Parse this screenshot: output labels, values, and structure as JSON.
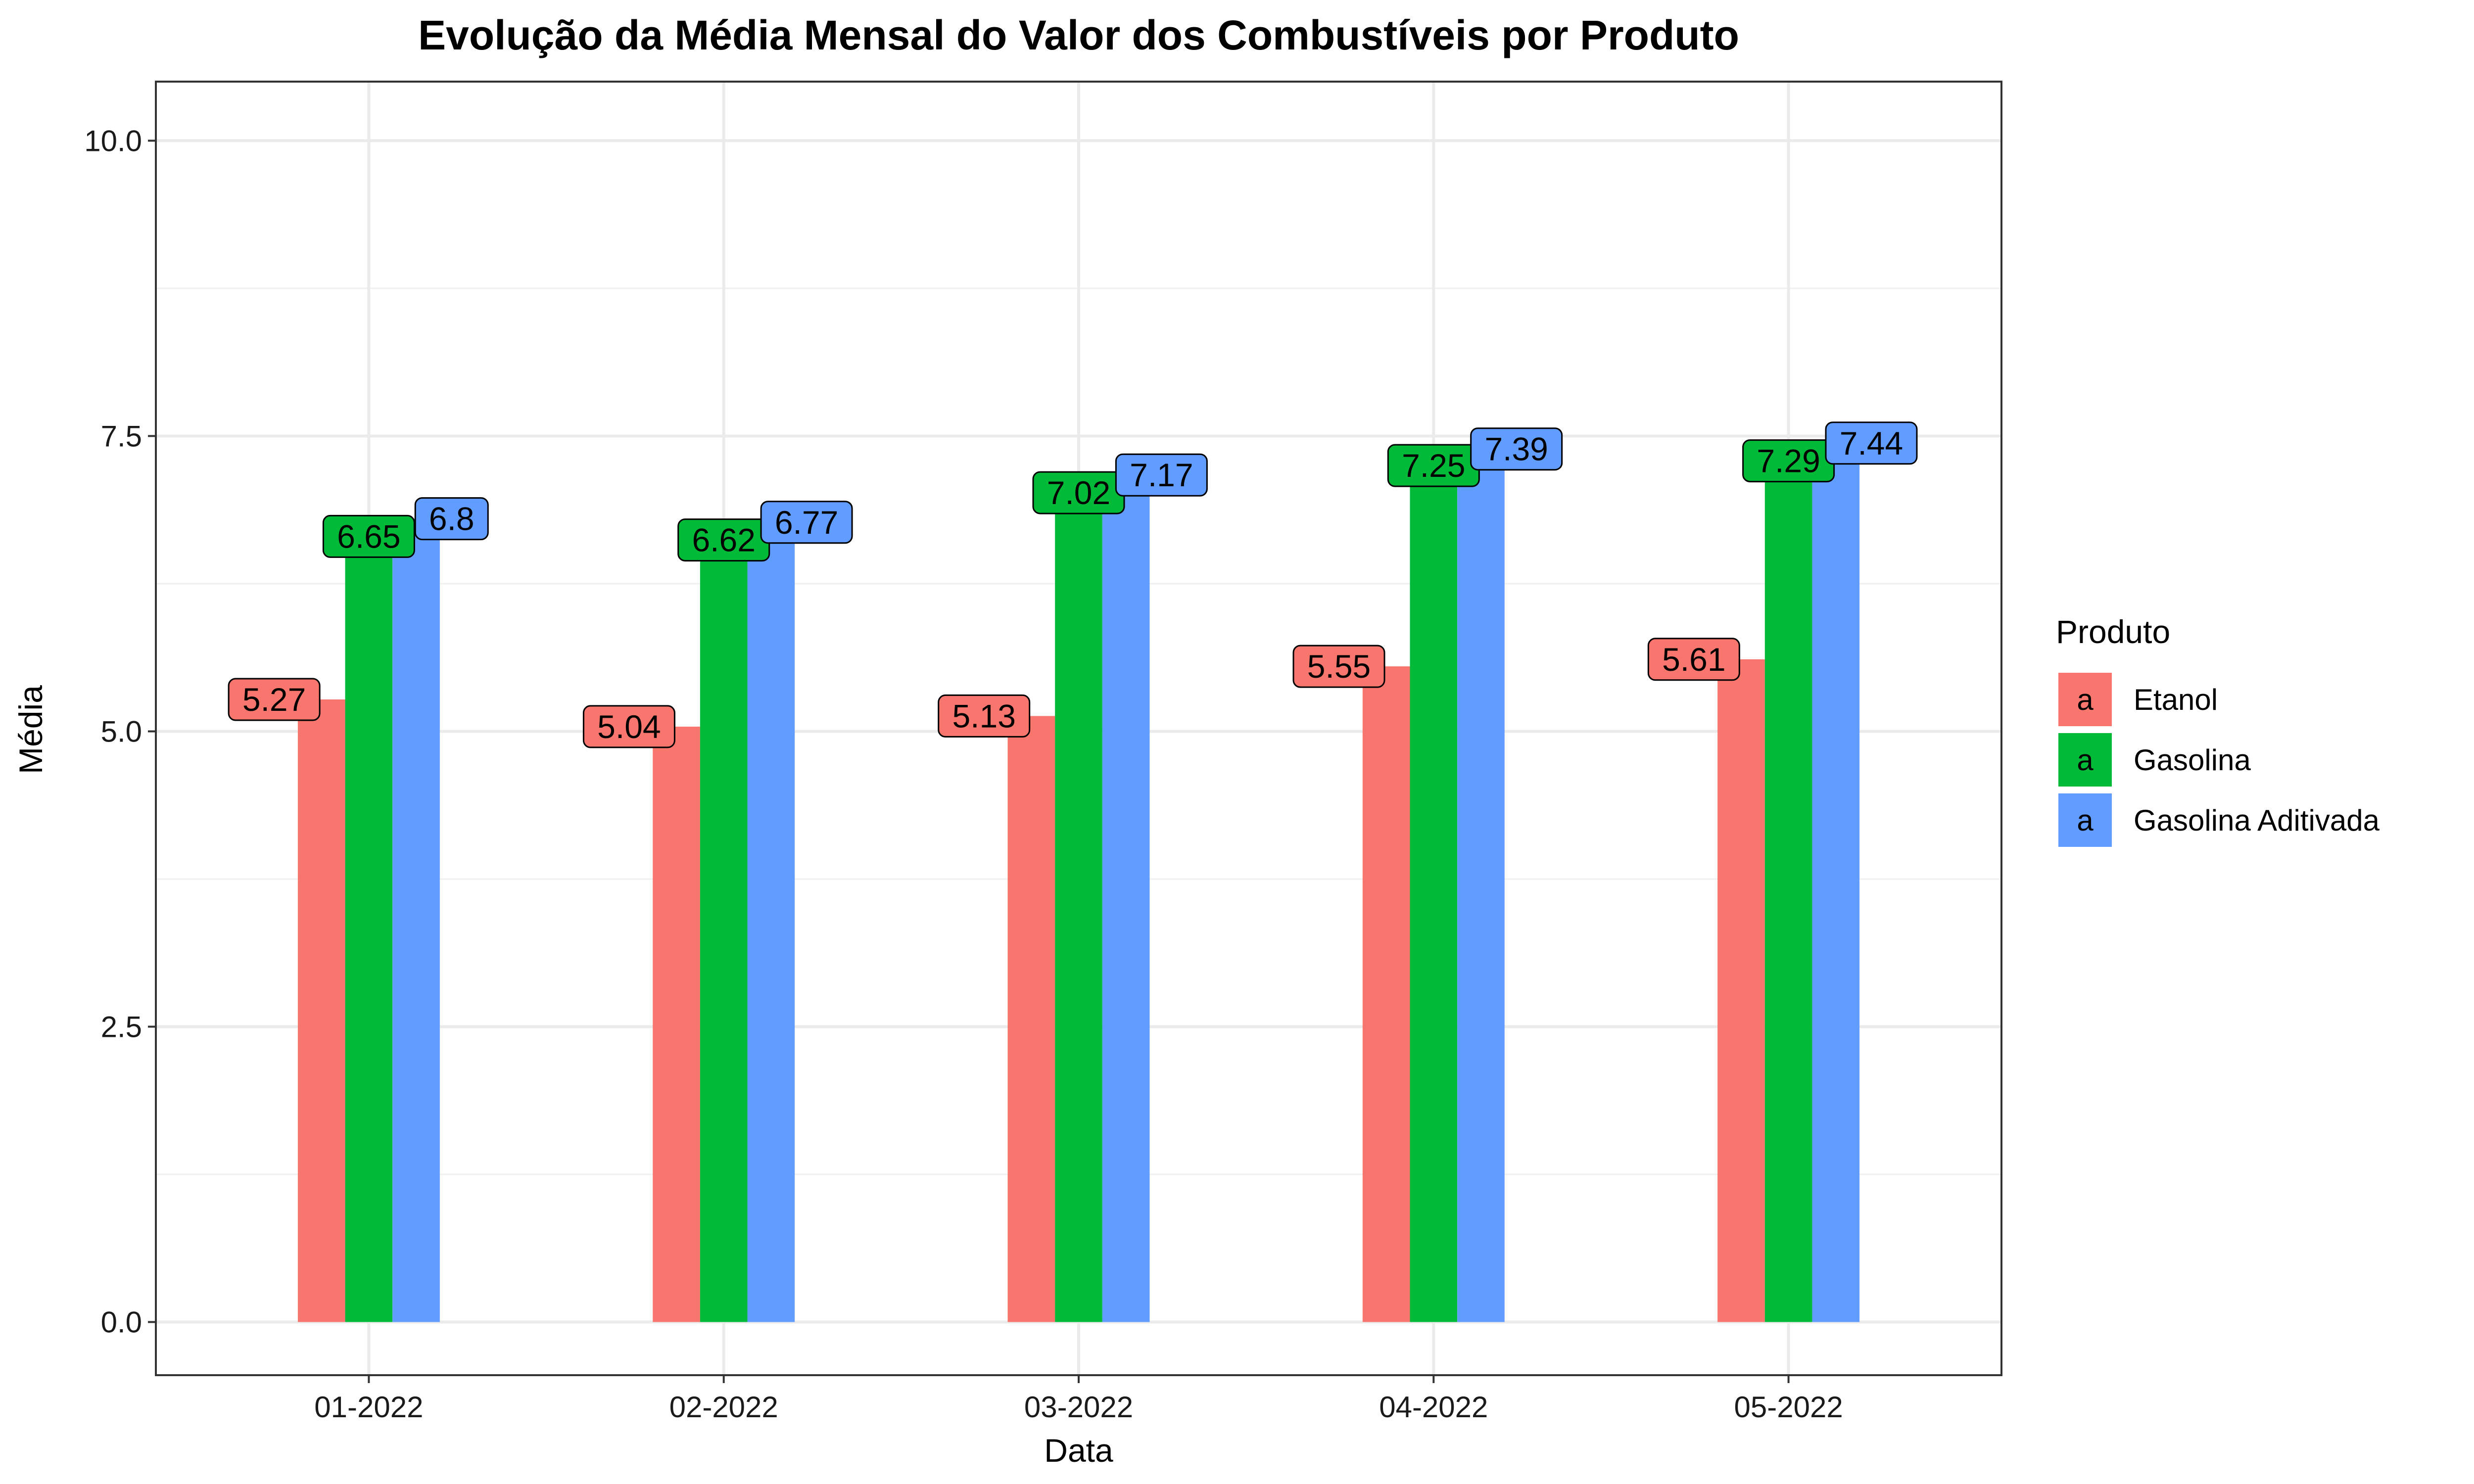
{
  "chart_data": {
    "type": "bar",
    "title": "Evolução da Média Mensal do Valor dos Combustíveis por Produto",
    "xlabel": "Data",
    "ylabel": "Média",
    "categories": [
      "01-2022",
      "02-2022",
      "03-2022",
      "04-2022",
      "05-2022"
    ],
    "y_ticks": [
      "0.0",
      "2.5",
      "5.0",
      "7.5",
      "10.0"
    ],
    "ylim": [
      -0.45,
      10.5
    ],
    "grid": true,
    "legend": {
      "title": "Produto",
      "position": "right",
      "key_glyph": "a"
    },
    "series": [
      {
        "name": "Etanol",
        "color": "#F8766D",
        "values": [
          5.27,
          5.04,
          5.13,
          5.55,
          5.61
        ],
        "labels": [
          "5.27",
          "5.04",
          "5.13",
          "5.55",
          "5.61"
        ]
      },
      {
        "name": "Gasolina",
        "color": "#00BA38",
        "values": [
          6.65,
          6.62,
          7.02,
          7.25,
          7.29
        ],
        "labels": [
          "6.65",
          "6.62",
          "7.02",
          "7.25",
          "7.29"
        ]
      },
      {
        "name": "Gasolina Aditivada",
        "color": "#619CFF",
        "values": [
          6.8,
          6.77,
          7.17,
          7.39,
          7.44
        ],
        "labels": [
          "6.8",
          "6.77",
          "7.17",
          "7.39",
          "7.44"
        ]
      }
    ]
  }
}
